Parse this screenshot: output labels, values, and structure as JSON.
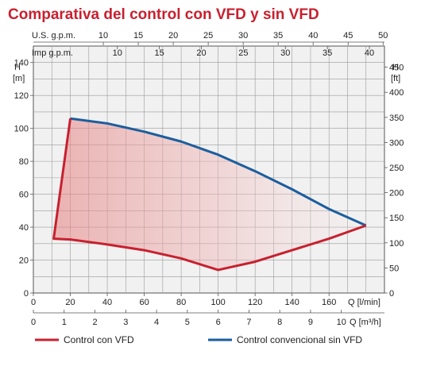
{
  "chart_data": {
    "type": "line",
    "title": "Comparativa del control con VFD y sin VFD",
    "top_axes": [
      {
        "label": "U.S. g.p.m.",
        "ticks": [
          "10",
          "15",
          "20",
          "25",
          "30",
          "35",
          "40",
          "45",
          "50"
        ]
      },
      {
        "label": "Imp g.p.m.",
        "ticks": [
          "10",
          "15",
          "20",
          "25",
          "30",
          "35",
          "40"
        ]
      }
    ],
    "y_left": {
      "label_line1": "H",
      "label_line2": "[m]",
      "range": [
        0,
        150
      ],
      "ticks": [
        "0",
        "20",
        "40",
        "60",
        "80",
        "100",
        "120",
        "140"
      ]
    },
    "y_right": {
      "label_line1": "H",
      "label_line2": "[ft]",
      "ticks": [
        "0",
        "50",
        "100",
        "150",
        "200",
        "250",
        "300",
        "350",
        "400",
        "450"
      ]
    },
    "x_lmin": {
      "label": "Q [l/min]",
      "range": [
        0,
        190
      ],
      "ticks": [
        "0",
        "20",
        "40",
        "60",
        "80",
        "100",
        "120",
        "140",
        "160"
      ]
    },
    "x_m3h": {
      "label": "Q [m³/h]",
      "ticks": [
        "0",
        "1",
        "2",
        "3",
        "4",
        "5",
        "6",
        "7",
        "8",
        "9",
        "10"
      ]
    },
    "series": [
      {
        "name": "Control con VFD",
        "color": "#c8202f",
        "x": [
          20,
          11,
          20,
          40,
          60,
          80,
          100,
          120,
          140,
          160,
          180
        ],
        "y": [
          106,
          33,
          32.5,
          29.5,
          26,
          21,
          14,
          19,
          26,
          33,
          41
        ]
      },
      {
        "name": "Control convencional sin VFD",
        "color": "#1b5e9e",
        "x": [
          20,
          40,
          60,
          80,
          100,
          120,
          140,
          160,
          180
        ],
        "y": [
          106,
          103,
          98,
          92,
          84,
          74,
          63,
          51,
          41
        ]
      }
    ],
    "fill_color": "#e9a1a1",
    "grid": true
  },
  "legend": [
    {
      "label": "Control con VFD",
      "color": "#c8202f"
    },
    {
      "label": "Control convencional sin VFD",
      "color": "#1b5e9e"
    }
  ]
}
